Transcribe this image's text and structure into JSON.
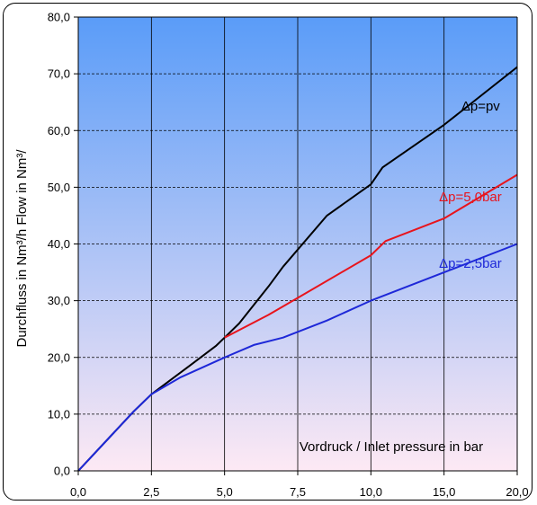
{
  "chart_data": {
    "type": "line",
    "xlabel": "Vordruck / Inlet pressure in bar",
    "ylabel": "Durchfluss in Nm³/h  Flow in Nm³/",
    "ylim": [
      0,
      80
    ],
    "y_ticks": [
      "0,0",
      "10,0",
      "20,0",
      "30,0",
      "40,0",
      "50,0",
      "60,0",
      "70,0",
      "80,0"
    ],
    "x_ticks": [
      "0,0",
      "2,5",
      "5,0",
      "7,5",
      "10,0",
      "15,0",
      "20,0"
    ],
    "x_tick_values": [
      0,
      2.5,
      5,
      7.5,
      10,
      15,
      20
    ],
    "grid": true,
    "background": {
      "top": "#5a9cf8",
      "bottom": "#fde9f4"
    },
    "series": [
      {
        "name": "Δp=pv",
        "color": "#000000",
        "points": [
          [
            0,
            0
          ],
          [
            1.9,
            10.5
          ],
          [
            2.5,
            13.5
          ],
          [
            3.8,
            18.5
          ],
          [
            4.7,
            22
          ],
          [
            5.0,
            23.5
          ],
          [
            5.5,
            26
          ],
          [
            6.5,
            32.5
          ],
          [
            7.0,
            36
          ],
          [
            8.5,
            45
          ],
          [
            10.0,
            50.5
          ],
          [
            10.8,
            53.5
          ],
          [
            15.0,
            61
          ],
          [
            20.0,
            71.2
          ]
        ]
      },
      {
        "name": "Δp=5,0bar",
        "color": "#e8141c",
        "points": [
          [
            5.0,
            23.5
          ],
          [
            6.5,
            27.5
          ],
          [
            7.5,
            30.5
          ],
          [
            10.0,
            38
          ],
          [
            11.0,
            40.5
          ],
          [
            15.0,
            44.5
          ],
          [
            20.0,
            52.2
          ]
        ]
      },
      {
        "name": "Δp=2,5bar",
        "color": "#1e28d8",
        "points": [
          [
            0,
            0
          ],
          [
            1.9,
            10.5
          ],
          [
            2.5,
            13.5
          ],
          [
            3.5,
            16.5
          ],
          [
            5.0,
            20
          ],
          [
            6.0,
            22.2
          ],
          [
            7.0,
            23.5
          ],
          [
            8.5,
            26.5
          ],
          [
            10.0,
            30
          ],
          [
            15.0,
            35
          ],
          [
            20.0,
            40
          ]
        ]
      }
    ]
  }
}
